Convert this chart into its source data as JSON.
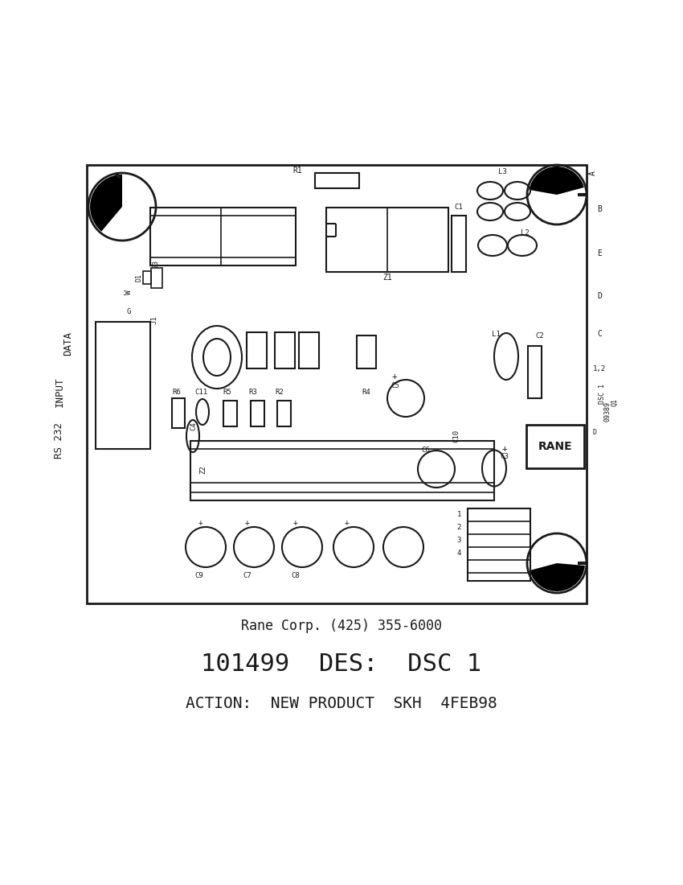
{
  "bg_color": "#ffffff",
  "lc": "#1a1a1a",
  "text_line1": "Rane Corp. (425) 355-6000",
  "text_line2": "101499  DES:  DSC 1",
  "text_line3": "ACTION:  NEW PRODUCT  SKH  4FEB98"
}
